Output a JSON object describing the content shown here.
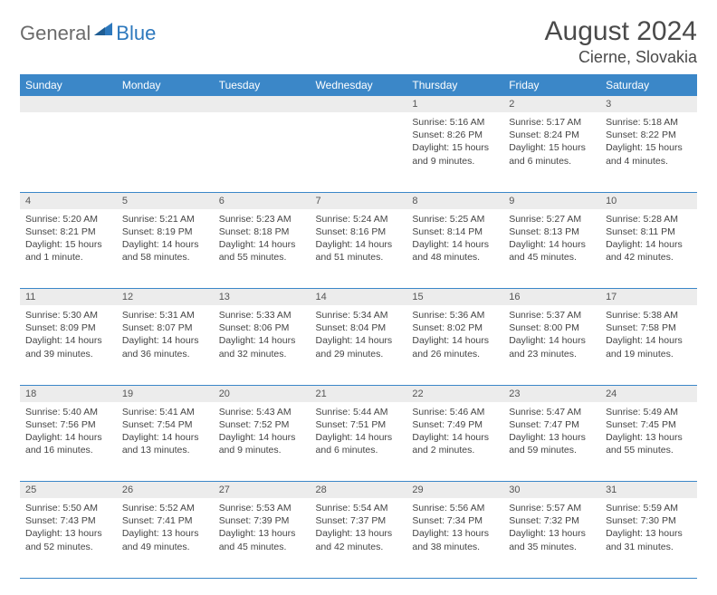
{
  "logo": {
    "part1": "General",
    "part2": "Blue"
  },
  "title": "August 2024",
  "location": "Cierne, Slovakia",
  "colors": {
    "header_bg": "#3b87c8",
    "header_fg": "#ffffff",
    "daynum_bg": "#ececec",
    "border": "#3b87c8",
    "logo_gray": "#6b6b6b",
    "logo_blue": "#2d78bd"
  },
  "weekdays": [
    "Sunday",
    "Monday",
    "Tuesday",
    "Wednesday",
    "Thursday",
    "Friday",
    "Saturday"
  ],
  "weeks": [
    [
      null,
      null,
      null,
      null,
      {
        "n": "1",
        "sr": "5:16 AM",
        "ss": "8:26 PM",
        "dl": "15 hours and 9 minutes."
      },
      {
        "n": "2",
        "sr": "5:17 AM",
        "ss": "8:24 PM",
        "dl": "15 hours and 6 minutes."
      },
      {
        "n": "3",
        "sr": "5:18 AM",
        "ss": "8:22 PM",
        "dl": "15 hours and 4 minutes."
      }
    ],
    [
      {
        "n": "4",
        "sr": "5:20 AM",
        "ss": "8:21 PM",
        "dl": "15 hours and 1 minute."
      },
      {
        "n": "5",
        "sr": "5:21 AM",
        "ss": "8:19 PM",
        "dl": "14 hours and 58 minutes."
      },
      {
        "n": "6",
        "sr": "5:23 AM",
        "ss": "8:18 PM",
        "dl": "14 hours and 55 minutes."
      },
      {
        "n": "7",
        "sr": "5:24 AM",
        "ss": "8:16 PM",
        "dl": "14 hours and 51 minutes."
      },
      {
        "n": "8",
        "sr": "5:25 AM",
        "ss": "8:14 PM",
        "dl": "14 hours and 48 minutes."
      },
      {
        "n": "9",
        "sr": "5:27 AM",
        "ss": "8:13 PM",
        "dl": "14 hours and 45 minutes."
      },
      {
        "n": "10",
        "sr": "5:28 AM",
        "ss": "8:11 PM",
        "dl": "14 hours and 42 minutes."
      }
    ],
    [
      {
        "n": "11",
        "sr": "5:30 AM",
        "ss": "8:09 PM",
        "dl": "14 hours and 39 minutes."
      },
      {
        "n": "12",
        "sr": "5:31 AM",
        "ss": "8:07 PM",
        "dl": "14 hours and 36 minutes."
      },
      {
        "n": "13",
        "sr": "5:33 AM",
        "ss": "8:06 PM",
        "dl": "14 hours and 32 minutes."
      },
      {
        "n": "14",
        "sr": "5:34 AM",
        "ss": "8:04 PM",
        "dl": "14 hours and 29 minutes."
      },
      {
        "n": "15",
        "sr": "5:36 AM",
        "ss": "8:02 PM",
        "dl": "14 hours and 26 minutes."
      },
      {
        "n": "16",
        "sr": "5:37 AM",
        "ss": "8:00 PM",
        "dl": "14 hours and 23 minutes."
      },
      {
        "n": "17",
        "sr": "5:38 AM",
        "ss": "7:58 PM",
        "dl": "14 hours and 19 minutes."
      }
    ],
    [
      {
        "n": "18",
        "sr": "5:40 AM",
        "ss": "7:56 PM",
        "dl": "14 hours and 16 minutes."
      },
      {
        "n": "19",
        "sr": "5:41 AM",
        "ss": "7:54 PM",
        "dl": "14 hours and 13 minutes."
      },
      {
        "n": "20",
        "sr": "5:43 AM",
        "ss": "7:52 PM",
        "dl": "14 hours and 9 minutes."
      },
      {
        "n": "21",
        "sr": "5:44 AM",
        "ss": "7:51 PM",
        "dl": "14 hours and 6 minutes."
      },
      {
        "n": "22",
        "sr": "5:46 AM",
        "ss": "7:49 PM",
        "dl": "14 hours and 2 minutes."
      },
      {
        "n": "23",
        "sr": "5:47 AM",
        "ss": "7:47 PM",
        "dl": "13 hours and 59 minutes."
      },
      {
        "n": "24",
        "sr": "5:49 AM",
        "ss": "7:45 PM",
        "dl": "13 hours and 55 minutes."
      }
    ],
    [
      {
        "n": "25",
        "sr": "5:50 AM",
        "ss": "7:43 PM",
        "dl": "13 hours and 52 minutes."
      },
      {
        "n": "26",
        "sr": "5:52 AM",
        "ss": "7:41 PM",
        "dl": "13 hours and 49 minutes."
      },
      {
        "n": "27",
        "sr": "5:53 AM",
        "ss": "7:39 PM",
        "dl": "13 hours and 45 minutes."
      },
      {
        "n": "28",
        "sr": "5:54 AM",
        "ss": "7:37 PM",
        "dl": "13 hours and 42 minutes."
      },
      {
        "n": "29",
        "sr": "5:56 AM",
        "ss": "7:34 PM",
        "dl": "13 hours and 38 minutes."
      },
      {
        "n": "30",
        "sr": "5:57 AM",
        "ss": "7:32 PM",
        "dl": "13 hours and 35 minutes."
      },
      {
        "n": "31",
        "sr": "5:59 AM",
        "ss": "7:30 PM",
        "dl": "13 hours and 31 minutes."
      }
    ]
  ],
  "labels": {
    "sunrise": "Sunrise:",
    "sunset": "Sunset:",
    "daylight": "Daylight:"
  }
}
